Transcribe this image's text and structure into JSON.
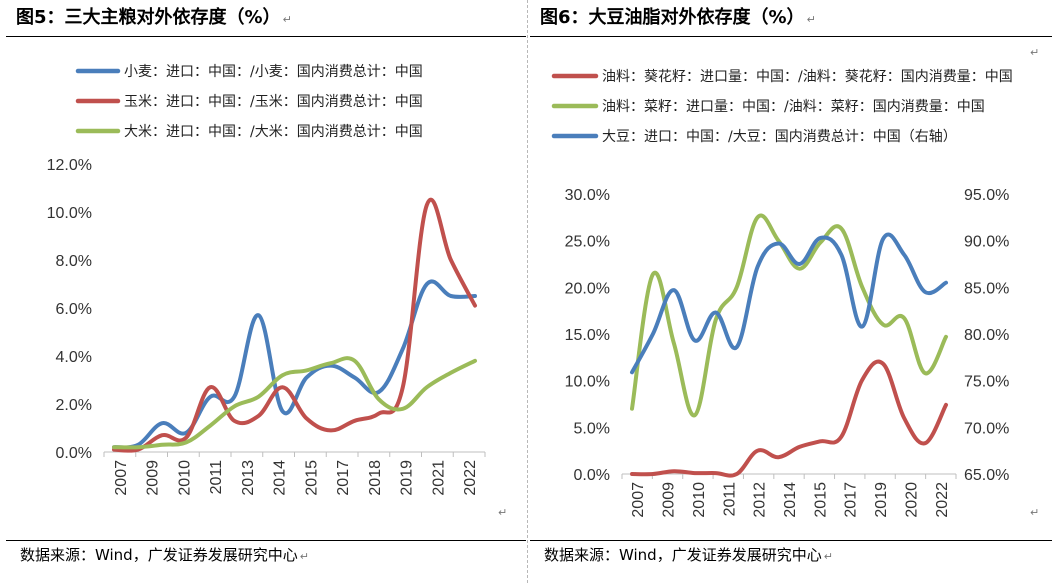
{
  "left_panel": {
    "title": "图5：三大主粮对外依存度（%）",
    "source": "数据来源：Wind，广发证券发展研究中心"
  },
  "right_panel": {
    "title": "图6：大豆油脂对外依存度（%）",
    "source": "数据来源：Wind，广发证券发展研究中心"
  },
  "marks": {
    "paragraph": "↵",
    "return": "↵"
  },
  "chart_data": [
    {
      "type": "line",
      "title": "图5：三大主粮对外依存度（%）",
      "xlabel": "",
      "ylabel": "",
      "x": [
        "2007",
        "2008",
        "2009",
        "2010",
        "2011",
        "2012",
        "2013",
        "2014",
        "2015",
        "2016",
        "2017",
        "2018",
        "2019",
        "2020",
        "2021",
        "2022"
      ],
      "x_tick_labels": [
        "2007",
        "2009",
        "2010",
        "2011",
        "2013",
        "2014",
        "2015",
        "2017",
        "2018",
        "2019",
        "2021",
        "2022"
      ],
      "ylim": [
        0,
        12
      ],
      "y_ticks": [
        0,
        2,
        4,
        6,
        8,
        10,
        12
      ],
      "y_tick_labels": [
        "0.0%",
        "2.0%",
        "4.0%",
        "6.0%",
        "8.0%",
        "10.0%",
        "12.0%"
      ],
      "legend_position": "top",
      "series": [
        {
          "name": "小麦：进口：中国：/小麦：国内消费总计：中国",
          "color": "#4a7ebb",
          "values": [
            0.2,
            0.3,
            1.2,
            0.8,
            2.3,
            2.3,
            5.7,
            1.7,
            3.1,
            3.6,
            3.1,
            2.5,
            4.3,
            7.0,
            6.5,
            6.5
          ]
        },
        {
          "name": "玉米：进口：中国：/玉米：国内消费总计：中国",
          "color": "#c0504d",
          "values": [
            0.1,
            0.1,
            0.7,
            0.6,
            2.7,
            1.3,
            1.5,
            2.7,
            1.4,
            0.9,
            1.3,
            1.6,
            2.7,
            10.3,
            8.0,
            6.1
          ]
        },
        {
          "name": "大米：进口：中国：/大米：国内消费总计：中国",
          "color": "#9bbb59",
          "values": [
            0.2,
            0.2,
            0.3,
            0.4,
            1.1,
            1.9,
            2.3,
            3.2,
            3.4,
            3.7,
            3.8,
            2.2,
            1.8,
            2.7,
            3.3,
            3.8
          ]
        }
      ]
    },
    {
      "type": "line",
      "title": "图6：大豆油脂对外依存度（%）",
      "xlabel": "",
      "ylabel": "",
      "x": [
        "2007",
        "2008",
        "2009",
        "2010",
        "2011",
        "2012",
        "2013",
        "2014",
        "2015",
        "2016",
        "2017",
        "2018",
        "2019",
        "2020",
        "2021",
        "2022"
      ],
      "x_tick_labels": [
        "2007",
        "2009",
        "2010",
        "2011",
        "2012",
        "2014",
        "2015",
        "2017",
        "2019",
        "2020",
        "2022"
      ],
      "ylim": [
        0,
        30
      ],
      "y_ticks": [
        0,
        5,
        10,
        15,
        20,
        25,
        30
      ],
      "y_tick_labels": [
        "0.0%",
        "5.0%",
        "10.0%",
        "15.0%",
        "20.0%",
        "25.0%",
        "30.0%"
      ],
      "y2lim": [
        65,
        95
      ],
      "y2_ticks": [
        65,
        70,
        75,
        80,
        85,
        90,
        95
      ],
      "y2_tick_labels": [
        "65.0%",
        "70.0%",
        "75.0%",
        "80.0%",
        "85.0%",
        "90.0%",
        "95.0%"
      ],
      "legend_position": "top",
      "series": [
        {
          "name": "油料：葵花籽：进口量：中国：/油料：葵花籽：国内消费量：中国",
          "color": "#c0504d",
          "axis": "left",
          "values": [
            0.0,
            0.0,
            0.3,
            0.1,
            0.1,
            0.0,
            2.5,
            1.8,
            2.9,
            3.5,
            4.0,
            10.1,
            11.8,
            6.0,
            3.3,
            7.4
          ]
        },
        {
          "name": "油料：菜籽：进口量：中国：/油料：菜籽：国内消费量：中国",
          "color": "#9bbb59",
          "axis": "left",
          "values": [
            7.0,
            21.4,
            14.0,
            6.3,
            16.5,
            20.0,
            27.5,
            25.0,
            22.0,
            24.8,
            26.3,
            20.0,
            16.0,
            16.7,
            10.8,
            14.7
          ]
        },
        {
          "name": "大豆：进口：中国：/大豆：国内消费总计：中国（右轴）",
          "color": "#4a7ebb",
          "axis": "right",
          "values": [
            75.9,
            80.0,
            84.7,
            79.3,
            82.3,
            78.6,
            87.2,
            89.7,
            87.5,
            90.3,
            88.5,
            80.8,
            90.2,
            88.5,
            84.5,
            85.5
          ]
        }
      ]
    }
  ]
}
